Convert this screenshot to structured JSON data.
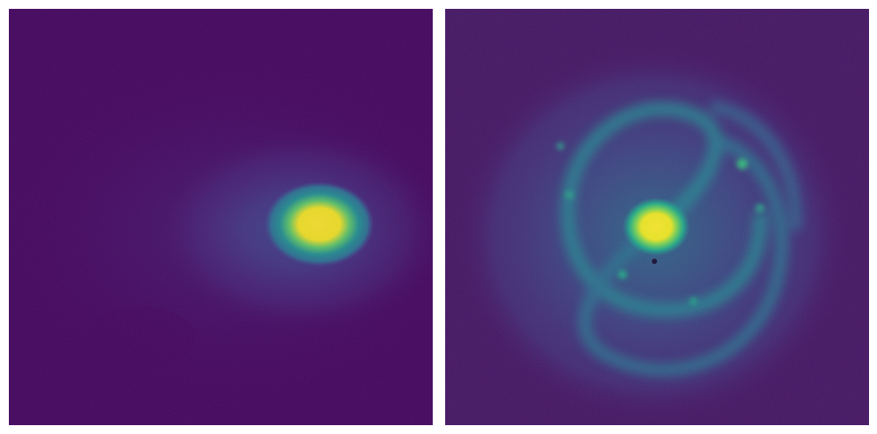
{
  "figure": {
    "panels": [
      {
        "id": "left",
        "subject": "elliptical-galaxy-image",
        "colormap": "viridis",
        "background_color": "#45055a",
        "core_color": "#f4e61e"
      },
      {
        "id": "right",
        "subject": "spiral-galaxy-image",
        "colormap": "viridis",
        "background_color": "#46105f",
        "core_color": "#f0e51e",
        "arm_color": "#2e8c89"
      }
    ]
  }
}
